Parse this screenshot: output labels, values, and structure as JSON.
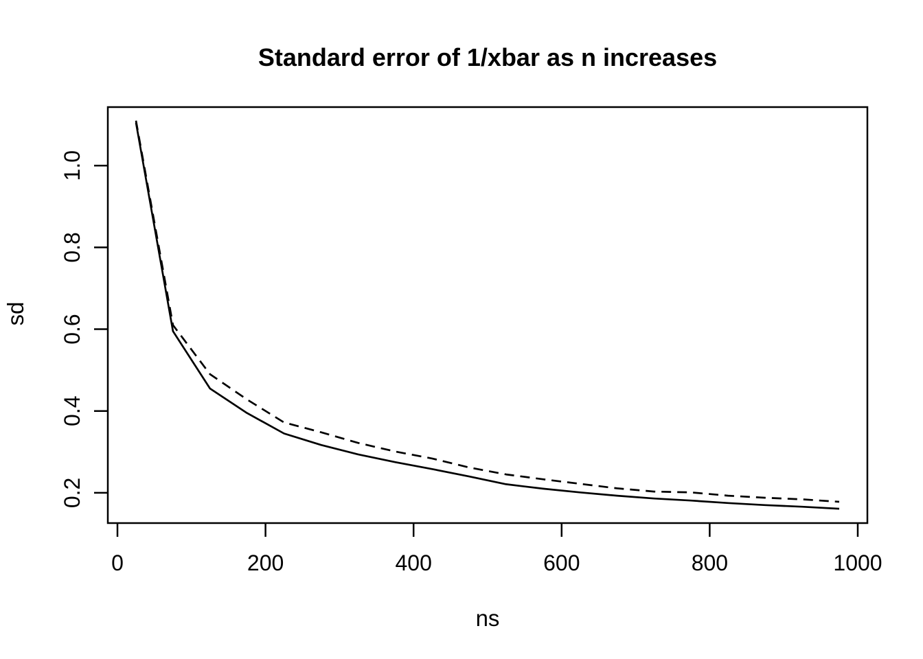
{
  "figure": {
    "title": "Standard error of 1/xbar as n increases",
    "xlabel": "ns",
    "ylabel": "sd"
  },
  "chart_data": {
    "type": "line",
    "title": "Standard error of 1/xbar as n increases",
    "xlabel": "ns",
    "ylabel": "sd",
    "x": [
      25,
      75,
      125,
      175,
      225,
      275,
      325,
      375,
      425,
      475,
      525,
      575,
      625,
      675,
      725,
      775,
      825,
      875,
      925,
      975
    ],
    "series": [
      {
        "name": "solid",
        "line_style": "solid",
        "color": "#000000",
        "values": [
          1.105,
          0.595,
          0.455,
          0.395,
          0.345,
          0.317,
          0.294,
          0.275,
          0.258,
          0.24,
          0.221,
          0.21,
          0.201,
          0.193,
          0.186,
          0.181,
          0.175,
          0.17,
          0.166,
          0.161
        ]
      },
      {
        "name": "dashed",
        "line_style": "dashed",
        "color": "#000000",
        "values": [
          1.11,
          0.61,
          0.49,
          0.428,
          0.372,
          0.348,
          0.322,
          0.301,
          0.284,
          0.262,
          0.245,
          0.233,
          0.222,
          0.211,
          0.203,
          0.201,
          0.193,
          0.188,
          0.184,
          0.178
        ]
      }
    ],
    "xlim": [
      -13,
      1013
    ],
    "ylim": [
      0.126,
      1.143
    ],
    "xticks": [
      0,
      200,
      400,
      600,
      800,
      1000
    ],
    "xtick_labels": [
      "0",
      "200",
      "400",
      "600",
      "800",
      "1000"
    ],
    "yticks": [
      0.2,
      0.4,
      0.6,
      0.8,
      1.0
    ],
    "ytick_labels": [
      "0.2",
      "0.4",
      "0.6",
      "0.8",
      "1.0"
    ],
    "grid": false,
    "legend": "none",
    "background": "#ffffff",
    "axis_color": "#000000"
  }
}
